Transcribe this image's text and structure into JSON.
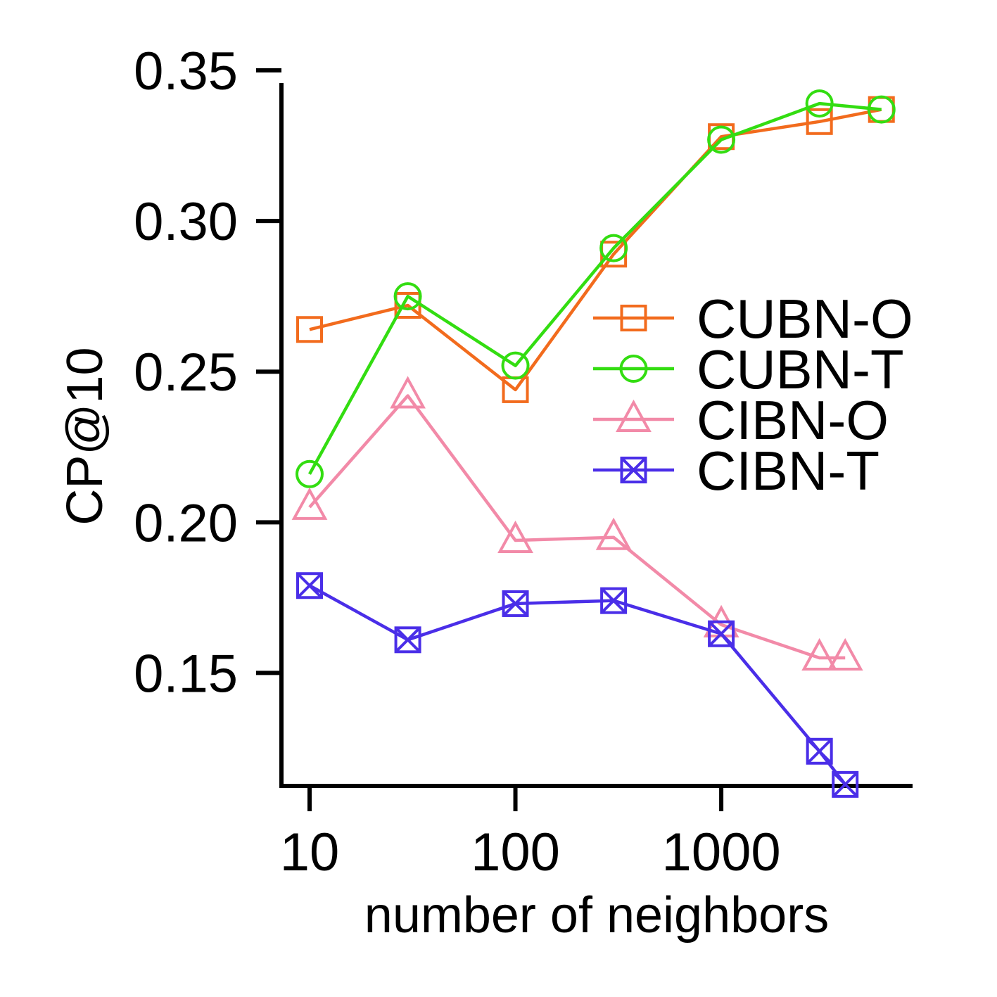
{
  "chart_data": {
    "type": "line",
    "xscale": "log",
    "title": "",
    "xlabel": "number of neighbors",
    "ylabel": "CP@10",
    "xlim": [
      7.3,
      8500
    ],
    "ylim": [
      0.1125,
      0.35
    ],
    "xticks": [
      10,
      100,
      1000
    ],
    "xtick_labels": [
      "10",
      "100",
      "1000"
    ],
    "yticks": [
      0.15,
      0.2,
      0.25,
      0.3,
      0.35
    ],
    "ytick_labels": [
      "0.15",
      "0.20",
      "0.25",
      "0.30",
      "0.35"
    ],
    "grid": false,
    "legend_position": "right",
    "series": [
      {
        "name": "CUBN-O",
        "color": "#f26b1d",
        "marker": "square",
        "x": [
          10,
          30,
          100,
          300,
          1000,
          3000,
          6000
        ],
        "y": [
          0.264,
          0.272,
          0.244,
          0.289,
          0.328,
          0.333,
          0.337
        ]
      },
      {
        "name": "CUBN-T",
        "color": "#33dd11",
        "marker": "circle",
        "x": [
          10,
          30,
          100,
          300,
          1000,
          3000,
          6000
        ],
        "y": [
          0.216,
          0.275,
          0.252,
          0.291,
          0.327,
          0.339,
          0.337
        ]
      },
      {
        "name": "CIBN-O",
        "color": "#f28aa8",
        "marker": "triangle",
        "x": [
          10,
          30,
          100,
          300,
          1000,
          3000,
          4000
        ],
        "y": [
          0.205,
          0.242,
          0.194,
          0.195,
          0.166,
          0.155,
          0.155
        ]
      },
      {
        "name": "CIBN-T",
        "color": "#4a2ee8",
        "marker": "boxx",
        "x": [
          10,
          30,
          100,
          300,
          1000,
          3000,
          4000
        ],
        "y": [
          0.179,
          0.161,
          0.173,
          0.174,
          0.163,
          0.124,
          0.113
        ]
      }
    ]
  }
}
